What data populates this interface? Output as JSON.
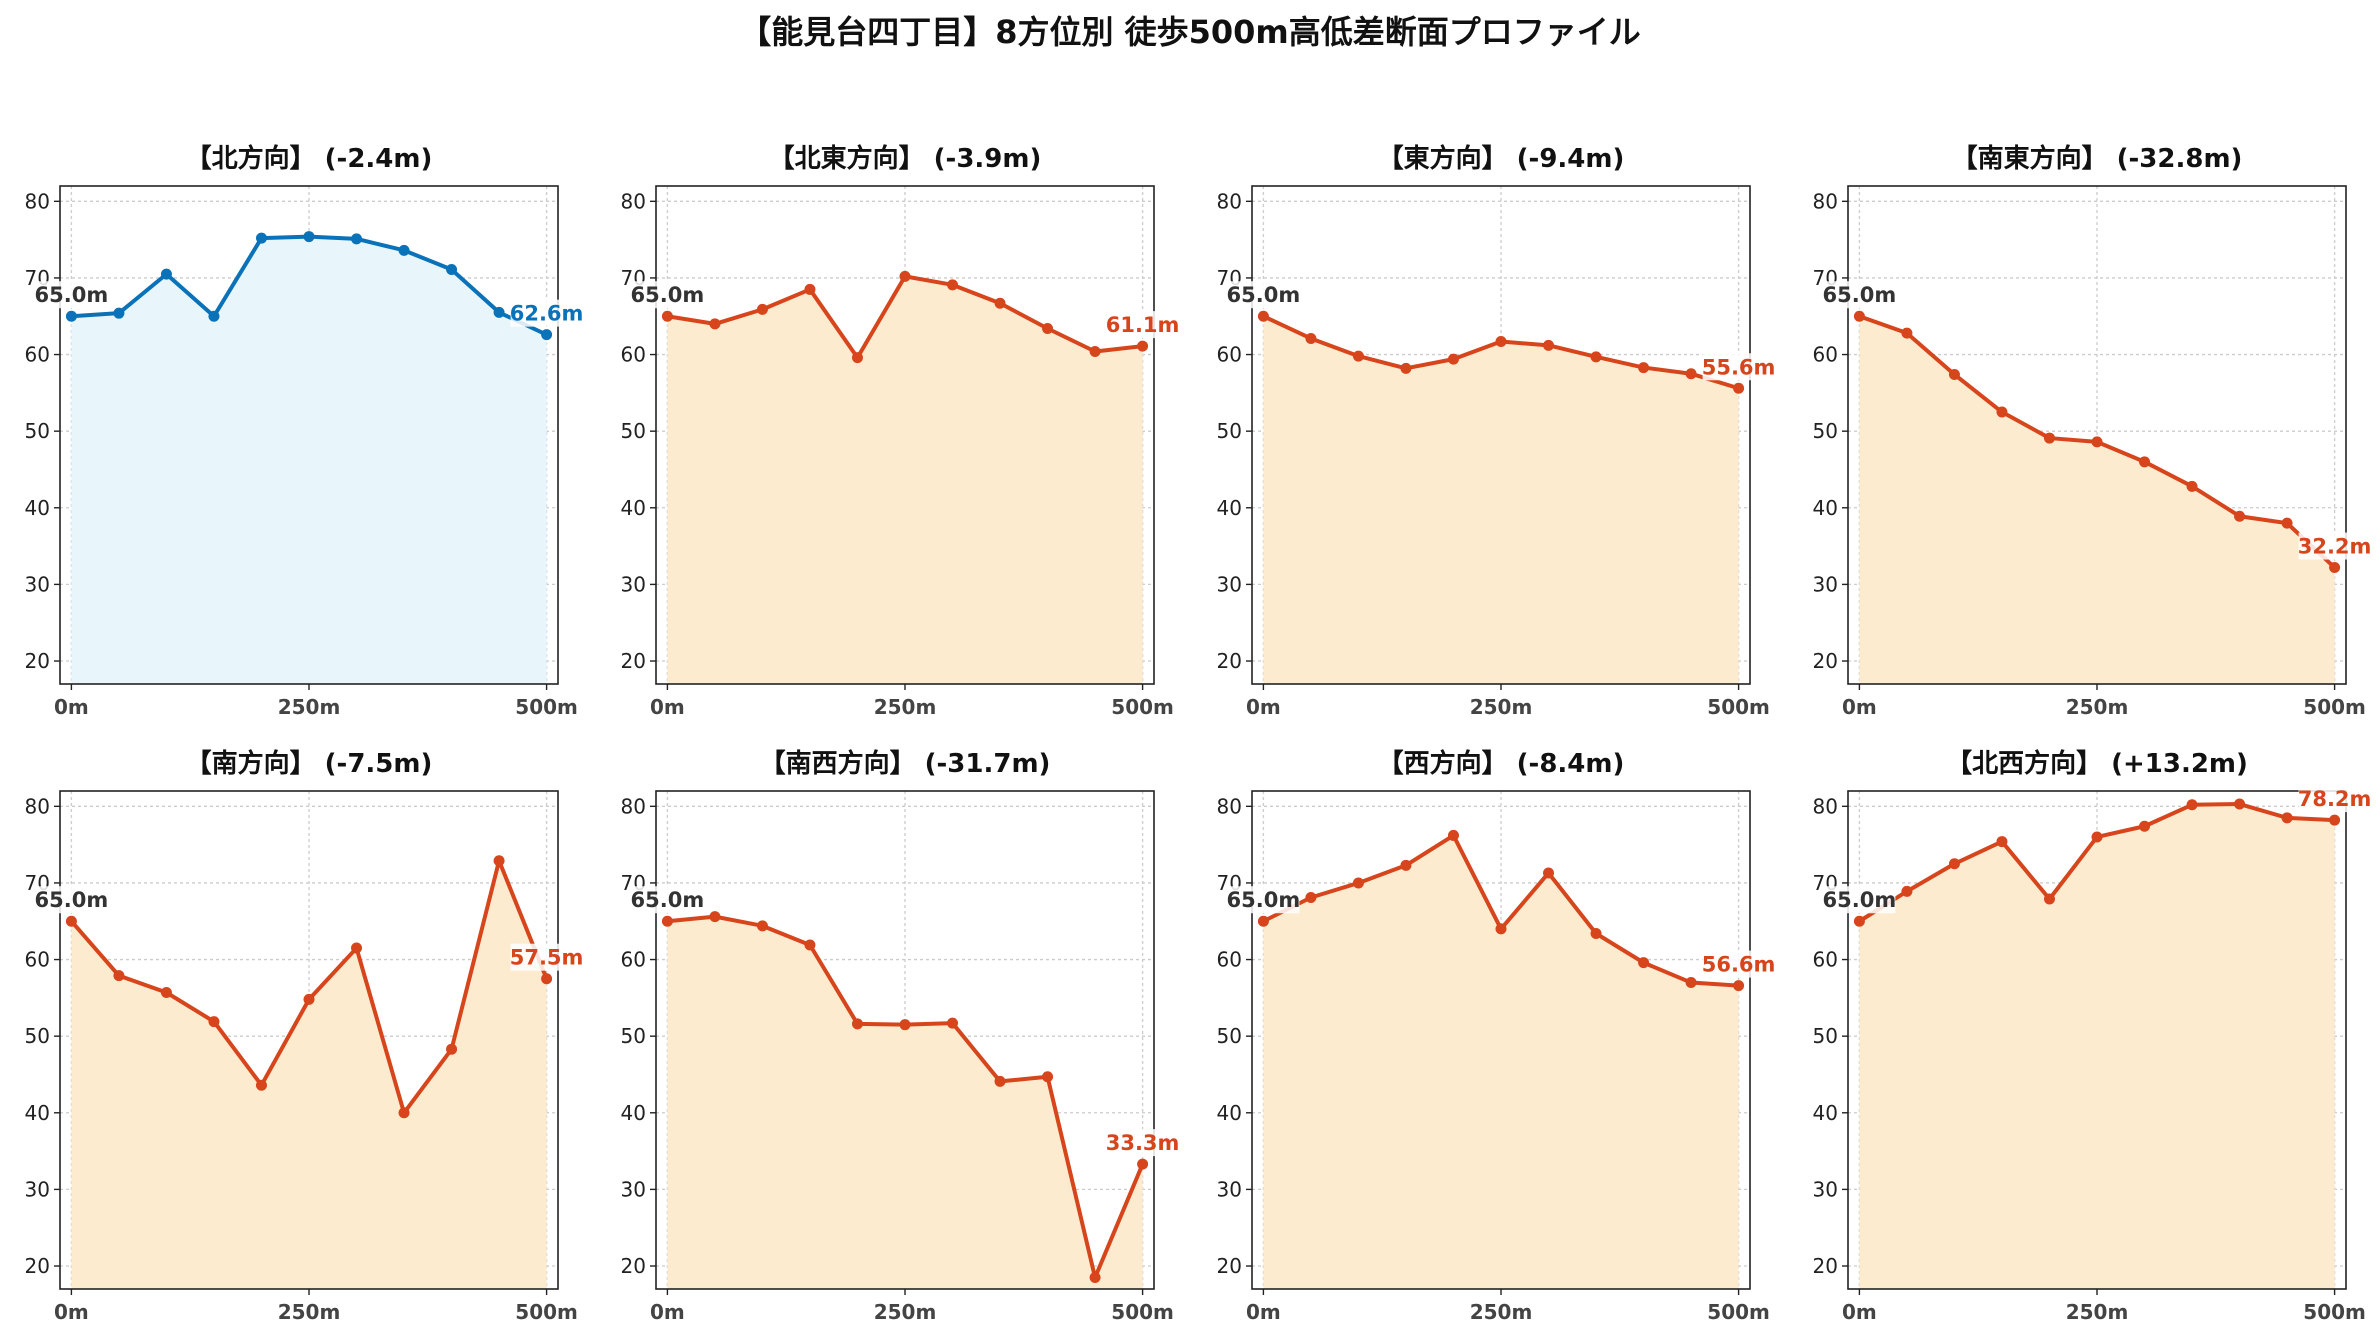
{
  "title": "【能見台四丁目】8方位別 徒歩500m高低差断面プロファイル",
  "colors": {
    "north_line": "#0a72b8",
    "north_fill": "#e8f6fb",
    "other_line": "#d6451b",
    "other_fill": "#fdebd0",
    "start_label": "#333333"
  },
  "chart_data": [
    {
      "type": "area",
      "title": "【北方向】 (-2.4m)",
      "x": [
        0,
        50,
        100,
        150,
        200,
        250,
        300,
        350,
        400,
        450,
        500
      ],
      "values": [
        65.0,
        65.4,
        70.5,
        65.0,
        75.2,
        75.4,
        75.1,
        73.6,
        71.1,
        65.5,
        62.6
      ],
      "start_label": "65.0m",
      "end_label": "62.6m",
      "color": "north",
      "ylim": [
        17,
        82
      ],
      "yticks": [
        20,
        30,
        40,
        50,
        60,
        70,
        80
      ],
      "xticks": [
        "0m",
        "250m",
        "500m"
      ],
      "grid": true
    },
    {
      "type": "area",
      "title": "【北東方向】 (-3.9m)",
      "x": [
        0,
        50,
        100,
        150,
        200,
        250,
        300,
        350,
        400,
        450,
        500
      ],
      "values": [
        65.0,
        64.0,
        65.9,
        68.5,
        59.6,
        70.2,
        69.1,
        66.7,
        63.4,
        60.4,
        61.1
      ],
      "start_label": "65.0m",
      "end_label": "61.1m",
      "color": "other",
      "ylim": [
        17,
        82
      ],
      "yticks": [
        20,
        30,
        40,
        50,
        60,
        70,
        80
      ],
      "xticks": [
        "0m",
        "250m",
        "500m"
      ],
      "grid": true
    },
    {
      "type": "area",
      "title": "【東方向】 (-9.4m)",
      "x": [
        0,
        50,
        100,
        150,
        200,
        250,
        300,
        350,
        400,
        450,
        500
      ],
      "values": [
        65.0,
        62.1,
        59.8,
        58.2,
        59.4,
        61.7,
        61.2,
        59.7,
        58.3,
        57.5,
        55.6
      ],
      "start_label": "65.0m",
      "end_label": "55.6m",
      "color": "other",
      "ylim": [
        17,
        82
      ],
      "yticks": [
        20,
        30,
        40,
        50,
        60,
        70,
        80
      ],
      "xticks": [
        "0m",
        "250m",
        "500m"
      ],
      "grid": true
    },
    {
      "type": "area",
      "title": "【南東方向】 (-32.8m)",
      "x": [
        0,
        50,
        100,
        150,
        200,
        250,
        300,
        350,
        400,
        450,
        500
      ],
      "values": [
        65.0,
        62.8,
        57.4,
        52.5,
        49.1,
        48.6,
        46.0,
        42.8,
        38.9,
        38.0,
        32.2
      ],
      "start_label": "65.0m",
      "end_label": "32.2m",
      "color": "other",
      "ylim": [
        17,
        82
      ],
      "yticks": [
        20,
        30,
        40,
        50,
        60,
        70,
        80
      ],
      "xticks": [
        "0m",
        "250m",
        "500m"
      ],
      "grid": true
    },
    {
      "type": "area",
      "title": "【南方向】 (-7.5m)",
      "x": [
        0,
        50,
        100,
        150,
        200,
        250,
        300,
        350,
        400,
        450,
        500
      ],
      "values": [
        65.0,
        57.9,
        55.7,
        51.9,
        43.6,
        54.8,
        61.5,
        40.0,
        48.3,
        72.9,
        57.5
      ],
      "start_label": "65.0m",
      "end_label": "57.5m",
      "color": "other",
      "ylim": [
        17,
        82
      ],
      "yticks": [
        20,
        30,
        40,
        50,
        60,
        70,
        80
      ],
      "xticks": [
        "0m",
        "250m",
        "500m"
      ],
      "grid": true
    },
    {
      "type": "area",
      "title": "【南西方向】 (-31.7m)",
      "x": [
        0,
        50,
        100,
        150,
        200,
        250,
        300,
        350,
        400,
        450,
        500
      ],
      "values": [
        65.0,
        65.6,
        64.4,
        61.9,
        51.6,
        51.5,
        51.7,
        44.1,
        44.7,
        18.5,
        33.3
      ],
      "start_label": "65.0m",
      "end_label": "33.3m",
      "color": "other",
      "ylim": [
        17,
        82
      ],
      "yticks": [
        20,
        30,
        40,
        50,
        60,
        70,
        80
      ],
      "xticks": [
        "0m",
        "250m",
        "500m"
      ],
      "grid": true
    },
    {
      "type": "area",
      "title": "【西方向】 (-8.4m)",
      "x": [
        0,
        50,
        100,
        150,
        200,
        250,
        300,
        350,
        400,
        450,
        500
      ],
      "values": [
        65.0,
        68.1,
        70.0,
        72.3,
        76.2,
        64.0,
        71.3,
        63.4,
        59.6,
        57.0,
        56.6
      ],
      "start_label": "65.0m",
      "end_label": "56.6m",
      "color": "other",
      "ylim": [
        17,
        82
      ],
      "yticks": [
        20,
        30,
        40,
        50,
        60,
        70,
        80
      ],
      "xticks": [
        "0m",
        "250m",
        "500m"
      ],
      "grid": true
    },
    {
      "type": "area",
      "title": "【北西方向】 (+13.2m)",
      "x": [
        0,
        50,
        100,
        150,
        200,
        250,
        300,
        350,
        400,
        450,
        500
      ],
      "values": [
        65.0,
        68.9,
        72.5,
        75.4,
        67.9,
        76.0,
        77.4,
        80.2,
        80.3,
        78.5,
        78.2
      ],
      "start_label": "65.0m",
      "end_label": "78.2m",
      "color": "other",
      "ylim": [
        17,
        82
      ],
      "yticks": [
        20,
        30,
        40,
        50,
        60,
        70,
        80
      ],
      "xticks": [
        "0m",
        "250m",
        "500m"
      ],
      "grid": true
    }
  ]
}
